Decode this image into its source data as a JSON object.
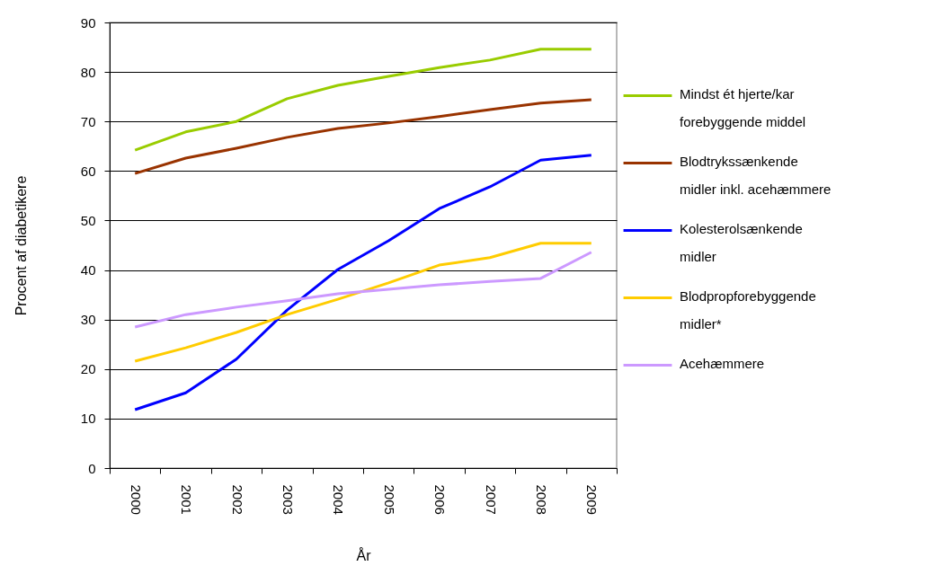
{
  "chart_data": {
    "type": "line",
    "xlabel": "År",
    "ylabel": "Procent af diabetikere",
    "categories": [
      "2000",
      "2001",
      "2002",
      "2003",
      "2004",
      "2005",
      "2006",
      "2007",
      "2008",
      "2009"
    ],
    "series": [
      {
        "name": "Mindst ét hjerte/kar forebyggende middel",
        "color": "#99cc00",
        "values": [
          64.2,
          67.9,
          70.0,
          74.6,
          77.3,
          79.1,
          80.9,
          82.4,
          84.6,
          84.6
        ]
      },
      {
        "name": "Blodtrykssænkende midler inkl. acehæmmere",
        "color": "#993300",
        "values": [
          59.5,
          62.6,
          64.6,
          66.8,
          68.6,
          69.7,
          71.0,
          72.4,
          73.7,
          74.4
        ]
      },
      {
        "name": "Kolesterolsænkende midler",
        "color": "#0000ff",
        "values": [
          11.8,
          15.2,
          22.0,
          31.9,
          40.1,
          45.9,
          52.4,
          56.8,
          62.2,
          63.2
        ]
      },
      {
        "name": "Blodpropforebyggende midler*",
        "color": "#ffcc00",
        "values": [
          21.6,
          24.3,
          27.4,
          31.0,
          34.1,
          37.4,
          41.0,
          42.5,
          45.4,
          45.4
        ]
      },
      {
        "name": "Acehæmmere",
        "color": "#cc99ff",
        "values": [
          28.5,
          31.0,
          32.5,
          33.8,
          35.2,
          36.1,
          37.0,
          37.7,
          38.3,
          43.6
        ]
      }
    ],
    "ylim": [
      0,
      90
    ],
    "yticks": [
      0,
      10,
      20,
      30,
      40,
      50,
      60,
      70,
      80,
      90
    ],
    "grid": "y",
    "legend": "right"
  }
}
